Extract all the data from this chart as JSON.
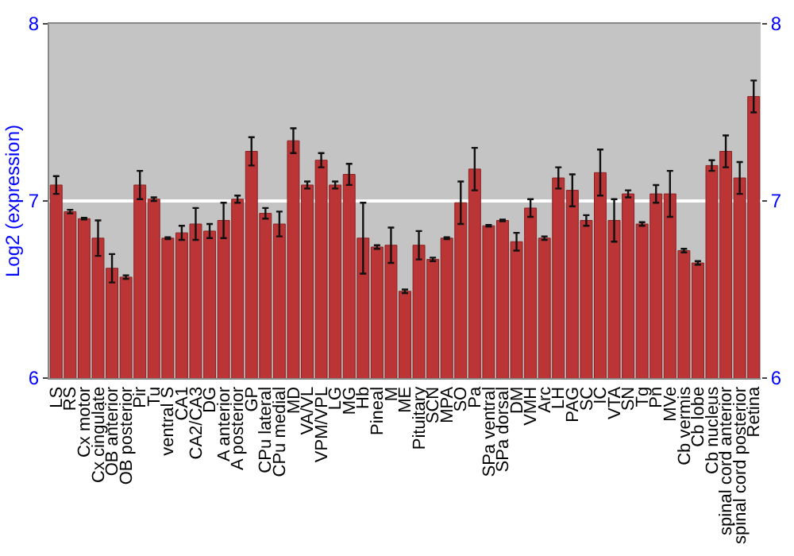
{
  "chart_data": {
    "type": "bar",
    "ylabel": "Log2 (expression)",
    "categories": [
      "LS",
      "RS",
      "Cx motor",
      "Cx cingulate",
      "OB anterior",
      "OB posterior",
      "Pir",
      "Tu",
      "ventral S",
      "CA1",
      "CA2/CA3",
      "DG",
      "A anterior",
      "A posterior",
      "GP",
      "CPu lateral",
      "CPu medial",
      "MD",
      "VA/VL",
      "VPM/VPL",
      "LG",
      "MG",
      "Hb",
      "Pineal",
      "M",
      "ME",
      "Pituitary",
      "SCN",
      "MPA",
      "SO",
      "Pa",
      "SPa ventral",
      "SPa dorsal",
      "DM",
      "VMH",
      "Arc",
      "LH",
      "PAG",
      "SC",
      "IC",
      "VTA",
      "SN",
      "Tg",
      "Pn",
      "MVe",
      "Cb vermis",
      "Cb lobe",
      "Cb nucleus",
      "spinal cord anterior",
      "spinal cord posterior",
      "Retina"
    ],
    "values": [
      7.09,
      6.94,
      6.9,
      6.79,
      6.62,
      6.57,
      7.09,
      7.01,
      6.79,
      6.82,
      6.87,
      6.83,
      6.89,
      7.01,
      7.28,
      6.93,
      6.87,
      7.34,
      7.09,
      7.23,
      7.09,
      7.15,
      6.79,
      6.74,
      6.75,
      6.49,
      6.75,
      6.67,
      6.79,
      6.99,
      7.18,
      6.86,
      6.89,
      6.77,
      6.96,
      6.79,
      7.13,
      7.06,
      6.89,
      7.16,
      6.89,
      7.04,
      6.87,
      7.04,
      7.04,
      6.72,
      6.65,
      7.2,
      7.28,
      7.13,
      7.59
    ],
    "errors": [
      0.05,
      0.01,
      0.005,
      0.1,
      0.08,
      0.01,
      0.08,
      0.01,
      0.005,
      0.04,
      0.09,
      0.04,
      0.1,
      0.02,
      0.08,
      0.03,
      0.07,
      0.07,
      0.02,
      0.04,
      0.02,
      0.06,
      0.2,
      0.01,
      0.1,
      0.01,
      0.08,
      0.01,
      0.005,
      0.12,
      0.12,
      0.005,
      0.005,
      0.05,
      0.05,
      0.01,
      0.06,
      0.09,
      0.03,
      0.13,
      0.12,
      0.02,
      0.01,
      0.05,
      0.13,
      0.01,
      0.01,
      0.03,
      0.09,
      0.09,
      0.09
    ],
    "color": "#bb3436",
    "ylim": [
      6,
      8
    ],
    "yticks": [
      6,
      7,
      8
    ],
    "y2lim": [
      6,
      8
    ],
    "y2ticks": [
      6,
      7,
      8
    ],
    "grid": "y"
  }
}
